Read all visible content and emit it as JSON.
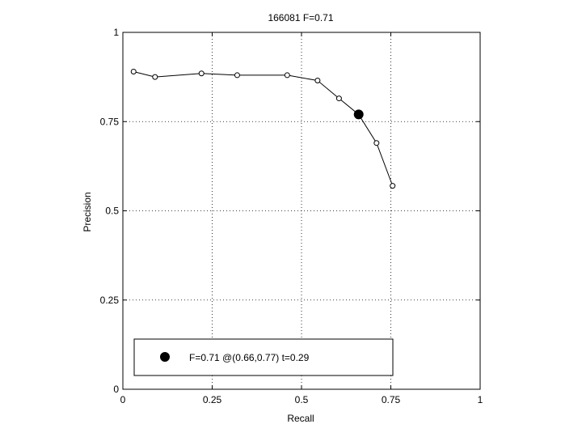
{
  "chart_data": {
    "type": "line",
    "title": "166081 F=0.71",
    "xlabel": "Recall",
    "ylabel": "Precision",
    "xlim": [
      0,
      1
    ],
    "ylim": [
      0,
      1
    ],
    "xticks": [
      0,
      0.25,
      0.5,
      0.75,
      1
    ],
    "yticks": [
      0,
      0.25,
      0.5,
      0.75,
      1
    ],
    "xtick_labels": [
      "0",
      "0.25",
      "0.5",
      "0.75",
      "1"
    ],
    "ytick_labels": [
      "0",
      "0.25",
      "0.5",
      "0.75",
      "1"
    ],
    "grid": true,
    "series": [
      {
        "points": [
          {
            "x": 0.03,
            "y": 0.89
          },
          {
            "x": 0.09,
            "y": 0.875
          },
          {
            "x": 0.22,
            "y": 0.885
          },
          {
            "x": 0.32,
            "y": 0.88
          },
          {
            "x": 0.46,
            "y": 0.88
          },
          {
            "x": 0.545,
            "y": 0.865
          },
          {
            "x": 0.605,
            "y": 0.815
          },
          {
            "x": 0.66,
            "y": 0.77
          },
          {
            "x": 0.71,
            "y": 0.69
          },
          {
            "x": 0.755,
            "y": 0.57
          }
        ]
      }
    ],
    "best_point": {
      "x": 0.66,
      "y": 0.77
    },
    "legend": {
      "label": "F=0.71 @(0.66,0.77) t=0.29",
      "placement": "bottom"
    }
  }
}
